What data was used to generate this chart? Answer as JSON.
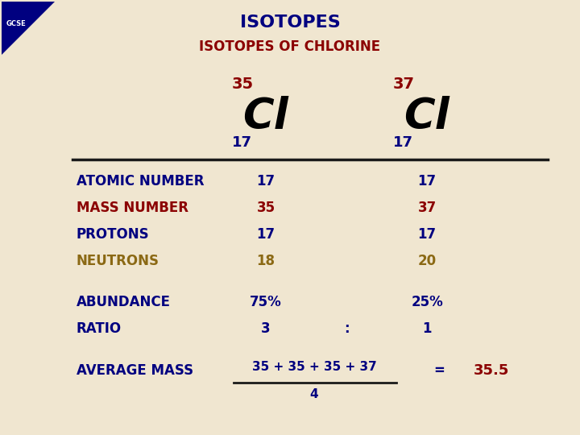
{
  "title": "ISOTOPES",
  "subtitle": "ISOTOPES OF CHLORINE",
  "title_color": "#000080",
  "subtitle_color": "#8B0000",
  "background_color": "#f0e6d0",
  "cl35_mass": "35",
  "cl37_mass": "37",
  "cl_symbol": "Cl",
  "cl_atomic": "17",
  "rows": [
    {
      "label": "ATOMIC NUMBER",
      "val1": "17",
      "val2": "17",
      "label_color": "#000080",
      "val_color": "#000080"
    },
    {
      "label": "MASS NUMBER",
      "val1": "35",
      "val2": "37",
      "label_color": "#8B0000",
      "val_color": "#8B0000"
    },
    {
      "label": "PROTONS",
      "val1": "17",
      "val2": "17",
      "label_color": "#000080",
      "val_color": "#000080"
    },
    {
      "label": "NEUTRONS",
      "val1": "18",
      "val2": "20",
      "label_color": "#8B6914",
      "val_color": "#8B6914"
    }
  ],
  "abundance_label": "ABUNDANCE",
  "abundance_val1": "75%",
  "abundance_val2": "25%",
  "ratio_label": "RATIO",
  "ratio_val1": "3",
  "ratio_colon": ":",
  "ratio_val2": "1",
  "avgmass_label": "AVERAGE MASS",
  "avgmass_numerator": "35 + 35 + 35 + 37",
  "avgmass_denominator": "4",
  "avgmass_equals": "=",
  "avgmass_result": "35.5",
  "label_color": "#000080",
  "value_color": "#000080",
  "result_color": "#8B0000",
  "line_color": "#1a1a1a"
}
